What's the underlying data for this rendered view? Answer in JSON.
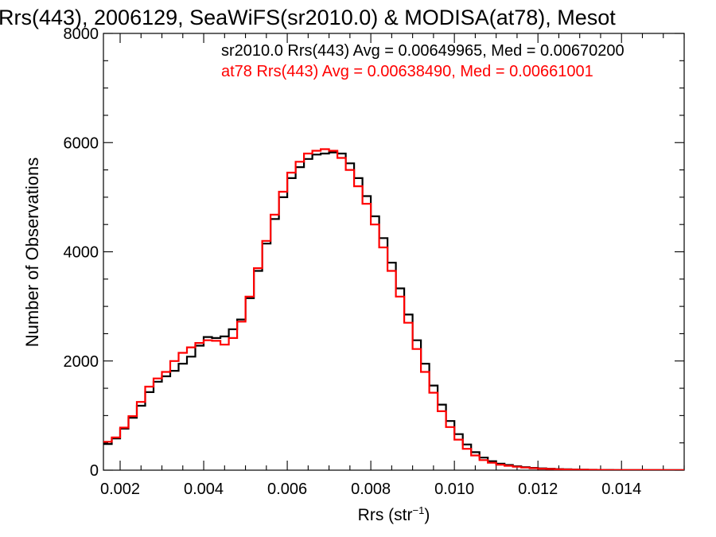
{
  "chart_data": {
    "type": "line",
    "title": "Rrs(443), 2006129, SeaWiFS(sr2010.0) & MODISA(at78), Mesot",
    "xlabel_main": "Rrs (str",
    "xlabel_sup": "−1",
    "xlabel_end": ")",
    "ylabel": "Number of Observations",
    "xlim": [
      0.0016,
      0.0155
    ],
    "ylim": [
      0,
      8000
    ],
    "xticks": [
      0.002,
      0.004,
      0.006,
      0.008,
      0.01,
      0.012,
      0.014
    ],
    "xtick_labels": [
      "0.002",
      "0.004",
      "0.006",
      "0.008",
      "0.010",
      "0.012",
      "0.014"
    ],
    "yticks": [
      0,
      2000,
      4000,
      6000,
      8000
    ],
    "ytick_labels": [
      "0",
      "2000",
      "4000",
      "6000",
      "8000"
    ],
    "grid": false,
    "annotations": [
      {
        "text": "sr2010.0 Rrs(443) Avg = 0.00649965, Med = 0.00670200",
        "color": "#000000"
      },
      {
        "text": "at78 Rrs(443) Avg = 0.00638490, Med = 0.00661001",
        "color": "#ff0000"
      }
    ],
    "series": [
      {
        "color": "#000000",
        "points": [
          [
            0.0016,
            480
          ],
          [
            0.0018,
            580
          ],
          [
            0.002,
            760
          ],
          [
            0.0022,
            960
          ],
          [
            0.0024,
            1180
          ],
          [
            0.0026,
            1430
          ],
          [
            0.0028,
            1620
          ],
          [
            0.003,
            1720
          ],
          [
            0.0032,
            1820
          ],
          [
            0.0034,
            1950
          ],
          [
            0.0036,
            2080
          ],
          [
            0.0038,
            2280
          ],
          [
            0.004,
            2440
          ],
          [
            0.0042,
            2420
          ],
          [
            0.0044,
            2450
          ],
          [
            0.0046,
            2580
          ],
          [
            0.0048,
            2760
          ],
          [
            0.005,
            3150
          ],
          [
            0.0052,
            3650
          ],
          [
            0.0054,
            4150
          ],
          [
            0.0056,
            4600
          ],
          [
            0.0058,
            5000
          ],
          [
            0.006,
            5350
          ],
          [
            0.0062,
            5550
          ],
          [
            0.0064,
            5700
          ],
          [
            0.0066,
            5780
          ],
          [
            0.0068,
            5800
          ],
          [
            0.007,
            5820
          ],
          [
            0.0072,
            5800
          ],
          [
            0.0074,
            5620
          ],
          [
            0.0076,
            5350
          ],
          [
            0.0078,
            5020
          ],
          [
            0.008,
            4650
          ],
          [
            0.0082,
            4250
          ],
          [
            0.0084,
            3800
          ],
          [
            0.0086,
            3330
          ],
          [
            0.0088,
            2850
          ],
          [
            0.009,
            2380
          ],
          [
            0.0092,
            1950
          ],
          [
            0.0094,
            1550
          ],
          [
            0.0096,
            1200
          ],
          [
            0.0098,
            900
          ],
          [
            0.01,
            660
          ],
          [
            0.0102,
            470
          ],
          [
            0.0104,
            330
          ],
          [
            0.0106,
            230
          ],
          [
            0.0108,
            165
          ],
          [
            0.011,
            120
          ],
          [
            0.0112,
            95
          ],
          [
            0.0114,
            72
          ],
          [
            0.0116,
            55
          ],
          [
            0.0118,
            42
          ],
          [
            0.012,
            33
          ],
          [
            0.0122,
            26
          ],
          [
            0.0124,
            20
          ],
          [
            0.0126,
            16
          ],
          [
            0.0128,
            12
          ],
          [
            0.013,
            9
          ],
          [
            0.0132,
            7
          ],
          [
            0.0134,
            5
          ],
          [
            0.0136,
            4
          ],
          [
            0.0138,
            3
          ],
          [
            0.014,
            2
          ],
          [
            0.0145,
            1
          ],
          [
            0.015,
            1
          ],
          [
            0.0155,
            0
          ]
        ]
      },
      {
        "color": "#ff0000",
        "points": [
          [
            0.0016,
            520
          ],
          [
            0.0018,
            600
          ],
          [
            0.002,
            780
          ],
          [
            0.0022,
            990
          ],
          [
            0.0024,
            1250
          ],
          [
            0.0026,
            1530
          ],
          [
            0.0028,
            1680
          ],
          [
            0.003,
            1800
          ],
          [
            0.0032,
            2000
          ],
          [
            0.0034,
            2150
          ],
          [
            0.0036,
            2250
          ],
          [
            0.0038,
            2330
          ],
          [
            0.004,
            2380
          ],
          [
            0.0042,
            2370
          ],
          [
            0.0044,
            2300
          ],
          [
            0.0046,
            2420
          ],
          [
            0.0048,
            2720
          ],
          [
            0.005,
            3180
          ],
          [
            0.0052,
            3700
          ],
          [
            0.0054,
            4200
          ],
          [
            0.0056,
            4680
          ],
          [
            0.0058,
            5100
          ],
          [
            0.006,
            5450
          ],
          [
            0.0062,
            5650
          ],
          [
            0.0064,
            5800
          ],
          [
            0.0066,
            5850
          ],
          [
            0.0068,
            5880
          ],
          [
            0.007,
            5850
          ],
          [
            0.0072,
            5720
          ],
          [
            0.0074,
            5500
          ],
          [
            0.0076,
            5200
          ],
          [
            0.0078,
            4880
          ],
          [
            0.008,
            4500
          ],
          [
            0.0082,
            4080
          ],
          [
            0.0084,
            3650
          ],
          [
            0.0086,
            3180
          ],
          [
            0.0088,
            2700
          ],
          [
            0.009,
            2220
          ],
          [
            0.0092,
            1800
          ],
          [
            0.0094,
            1420
          ],
          [
            0.0096,
            1080
          ],
          [
            0.0098,
            790
          ],
          [
            0.01,
            560
          ],
          [
            0.0102,
            390
          ],
          [
            0.0104,
            270
          ],
          [
            0.0106,
            185
          ],
          [
            0.0108,
            135
          ],
          [
            0.011,
            100
          ],
          [
            0.0112,
            80
          ],
          [
            0.0114,
            62
          ],
          [
            0.0116,
            48
          ],
          [
            0.0118,
            37
          ],
          [
            0.012,
            28
          ],
          [
            0.0122,
            22
          ],
          [
            0.0124,
            17
          ],
          [
            0.0126,
            13
          ],
          [
            0.0128,
            10
          ],
          [
            0.013,
            8
          ],
          [
            0.0132,
            6
          ],
          [
            0.0134,
            4
          ],
          [
            0.0136,
            3
          ],
          [
            0.0138,
            2
          ],
          [
            0.014,
            2
          ],
          [
            0.0145,
            1
          ],
          [
            0.015,
            0
          ],
          [
            0.0155,
            0
          ]
        ]
      }
    ]
  }
}
